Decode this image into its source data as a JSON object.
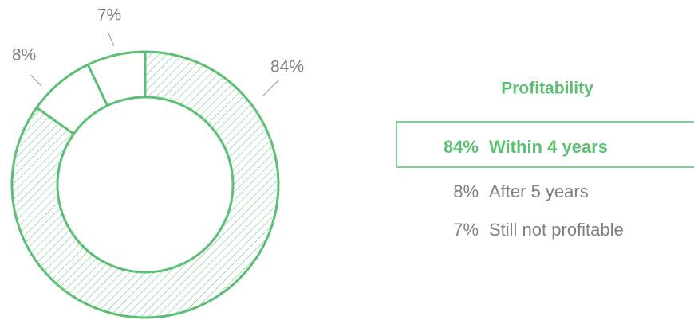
{
  "chart_data": {
    "type": "pie",
    "donut": true,
    "legend_title": "Profitability",
    "categories": [
      "Within 4 years",
      "After 5 years",
      "Still not profitable"
    ],
    "values": [
      84,
      8,
      7
    ],
    "value_labels": [
      "84%",
      "8%",
      "7%"
    ],
    "color": "#5cbf73",
    "hatched": [
      true,
      false,
      false
    ],
    "highlight": 0
  }
}
